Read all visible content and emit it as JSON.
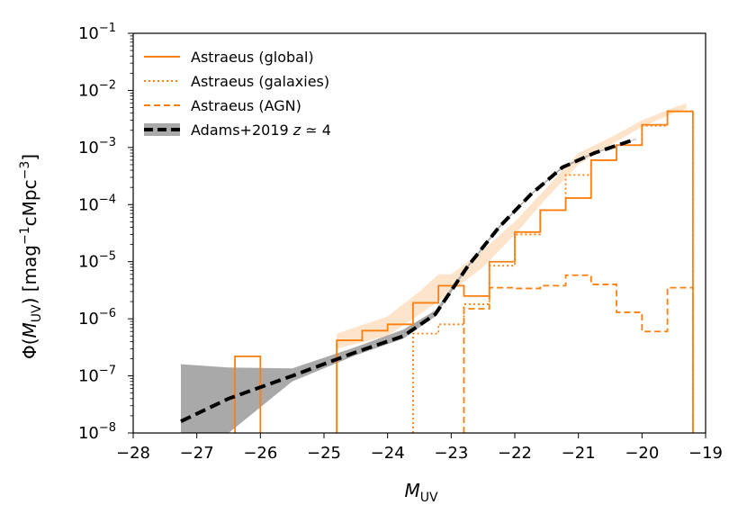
{
  "chart_data": {
    "type": "line",
    "xlabel": "M",
    "xlabel_sub": "UV",
    "ylabel_parts": [
      "Φ(",
      "M",
      "UV",
      ") [mag",
      "−1",
      "cMpc",
      "−3",
      "]"
    ],
    "xlim": [
      -28,
      -19
    ],
    "ylim_log10": [
      -8,
      -1
    ],
    "x_ticks": [
      -28,
      -27,
      -26,
      -25,
      -24,
      -23,
      -22,
      -21,
      -20,
      -19
    ],
    "x_tick_labels": [
      "−28",
      "−27",
      "−26",
      "−25",
      "−24",
      "−23",
      "−22",
      "−21",
      "−20",
      "−19"
    ],
    "y_ticks_log10": [
      -8,
      -7,
      -6,
      -5,
      -4,
      -3,
      -2,
      -1
    ],
    "y_tick_base": "10",
    "y_tick_exponents": [
      "−8",
      "−7",
      "−6",
      "−5",
      "−4",
      "−3",
      "−2",
      "−1"
    ],
    "legend": {
      "placement": "top-left",
      "entries": [
        {
          "key": "global",
          "label": "Astraeus (global)",
          "style": "solid"
        },
        {
          "key": "galaxies",
          "label": "Astraeus (galaxies)",
          "style": "dotted"
        },
        {
          "key": "agn",
          "label": "Astraeus (AGN)",
          "style": "dashed"
        },
        {
          "key": "adams",
          "label": "Adams+2019 ",
          "label_z": "z",
          "label_tail": " ≃ 4",
          "style": "thick-dashed-band"
        }
      ]
    },
    "colors": {
      "astraeus": "#ff7f0e",
      "adams_line": "#000000",
      "adams_band": "#a9a9a9",
      "astraeus_band": "#fdd9b5"
    },
    "series": [
      {
        "name": "Astraeus (global)",
        "style": "solid",
        "bin_width": 0.4,
        "bin_left_edges": [
          -26.4,
          -24.8,
          -24.4,
          -24.0,
          -23.6,
          -23.2,
          -22.8,
          -22.4,
          -22.0,
          -21.6,
          -21.2,
          -20.8,
          -20.4,
          -20.0,
          -19.6
        ],
        "values": [
          2.2e-07,
          4.2e-07,
          6.2e-07,
          8e-07,
          1.9e-06,
          3.8e-06,
          2.5e-06,
          1e-05,
          3.3e-05,
          8e-05,
          0.00013,
          0.0006,
          0.0011,
          0.0025,
          0.0043
        ]
      },
      {
        "name": "Astraeus (galaxies)",
        "style": "dotted",
        "bin_width": 0.4,
        "bin_left_edges": [
          -23.6,
          -23.2,
          -22.8,
          -22.4,
          -22.0,
          -21.6,
          -21.2,
          -20.8,
          -20.4,
          -20.0,
          -19.6
        ],
        "values": [
          5.5e-07,
          8e-07,
          1.8e-06,
          8.5e-06,
          3e-05,
          8e-05,
          0.00033,
          0.0006,
          0.0011,
          0.0024,
          0.0043
        ]
      },
      {
        "name": "Astraeus (AGN)",
        "style": "dashed",
        "bin_width": 0.4,
        "bin_left_edges": [
          -22.8,
          -22.4,
          -22.0,
          -21.6,
          -21.2,
          -20.8,
          -20.4,
          -20.0,
          -19.6
        ],
        "values": [
          1.5e-06,
          3.5e-06,
          3.4e-06,
          3.8e-06,
          5.8e-06,
          4e-06,
          1.3e-06,
          6e-07,
          3.5e-06
        ]
      },
      {
        "name": "Adams+2019 z≃4",
        "style": "thick-dashed",
        "x": [
          -27.25,
          -26.5,
          -25.5,
          -24.5,
          -23.75,
          -23.25,
          -22.75,
          -22.25,
          -21.75,
          -21.25,
          -20.75,
          -20.1
        ],
        "y": [
          1.6e-08,
          4e-08,
          1e-07,
          2.6e-07,
          5e-07,
          1.2e-06,
          8e-06,
          4e-05,
          0.00015,
          0.00045,
          0.0008,
          0.0014
        ],
        "band_lower": [
          1e-08,
          1e-08,
          8e-08,
          2.3e-07,
          4.5e-07,
          1.1e-06,
          7.5e-06,
          3.8e-05,
          0.000145,
          0.00043,
          0.00078,
          0.00138
        ],
        "band_upper": [
          1.6e-07,
          1.4e-07,
          1.35e-07,
          3.2e-07,
          6.5e-07,
          1.4e-06,
          8.5e-06,
          4.2e-05,
          0.000155,
          0.00047,
          0.00082,
          0.00142
        ]
      }
    ],
    "astraeus_band": {
      "x": [
        -24.8,
        -24.0,
        -23.5,
        -23.2,
        -23.0,
        -22.5,
        -22.0,
        -21.5,
        -21.0,
        -20.5,
        -20.0,
        -19.5,
        -19.3
      ],
      "lower": [
        3e-07,
        5e-07,
        1.2e-06,
        2e-06,
        3e-06,
        8e-06,
        3e-05,
        0.00013,
        0.0005,
        0.0011,
        0.0023,
        0.004,
        0.0048
      ],
      "upper": [
        5.5e-07,
        1.1e-06,
        3e-06,
        6e-06,
        6e-06,
        1.6e-05,
        5e-05,
        0.0002,
        0.0008,
        0.0015,
        0.003,
        0.005,
        0.006
      ]
    }
  }
}
